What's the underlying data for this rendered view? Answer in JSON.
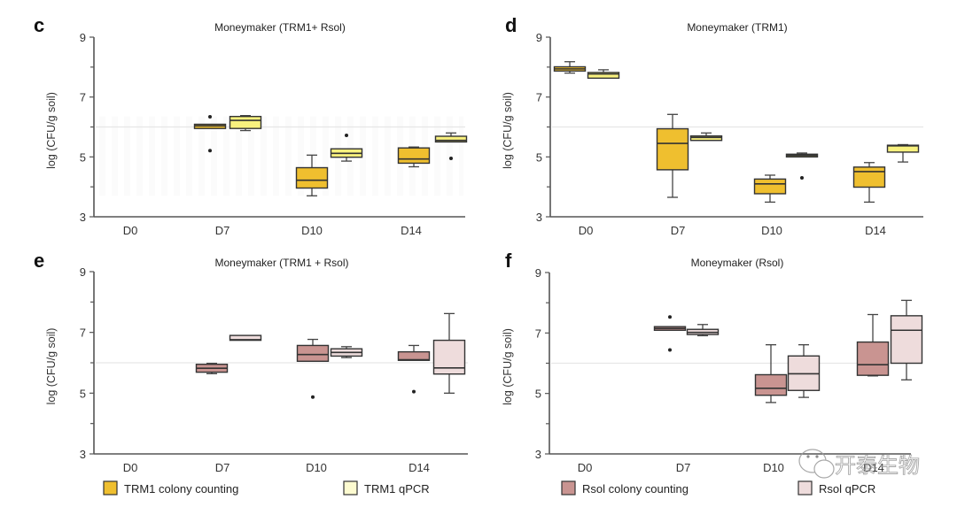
{
  "colors": {
    "trm1_colony": "#EFBF2F",
    "trm1_qpcr": "#F8F17E",
    "trm1_legend_qpcr": "#FDFBD0",
    "rsol_colony": "#C99491",
    "rsol_qpcr": "#EEDCDC",
    "reference_line": "#E6E6E6"
  },
  "legends": {
    "left": [
      {
        "label": "TRM1 colony counting",
        "color_key": "trm1_colony"
      },
      {
        "label": "TRM1 qPCR",
        "color_key": "trm1_legend_qpcr"
      }
    ],
    "right": [
      {
        "label": "Rsol colony counting",
        "color_key": "rsol_colony"
      },
      {
        "label": "Rsol qPCR",
        "color_key": "rsol_qpcr"
      }
    ]
  },
  "watermark": {
    "text": "开泰生物",
    "icon": "wechat-icon"
  },
  "chart_data": [
    {
      "panel": "c",
      "type": "box",
      "title": "Moneymaker (TRM1+ Rsol)",
      "xlabel": "",
      "ylabel": "log (CFU/g soil)",
      "ylim": [
        3,
        9
      ],
      "yticks": [
        3,
        5,
        7,
        9
      ],
      "yminor_ticks": [
        4,
        6,
        8
      ],
      "reference_line": 6,
      "categories": [
        "D0",
        "D7",
        "D10",
        "D14"
      ],
      "series": [
        {
          "name": "TRM1 colony counting",
          "color_key": "trm1_colony",
          "boxes": [
            null,
            {
              "whislo": 5.95,
              "q1": 5.95,
              "med": 6.04,
              "q3": 6.09,
              "whishi": 6.09,
              "fliers": [
                6.34,
                5.21
              ]
            },
            {
              "whislo": 3.7,
              "q1": 3.96,
              "med": 4.22,
              "q3": 4.64,
              "whishi": 5.06,
              "fliers": []
            },
            {
              "whislo": 4.67,
              "q1": 4.79,
              "med": 4.93,
              "q3": 5.3,
              "whishi": 5.33,
              "fliers": []
            }
          ]
        },
        {
          "name": "TRM1 qPCR",
          "color_key": "trm1_qpcr",
          "boxes": [
            null,
            {
              "whislo": 5.88,
              "q1": 5.95,
              "med": 6.22,
              "q3": 6.35,
              "whishi": 6.38,
              "fliers": []
            },
            {
              "whislo": 4.86,
              "q1": 4.99,
              "med": 5.12,
              "q3": 5.27,
              "whishi": 5.27,
              "fliers": [
                5.72
              ]
            },
            {
              "whislo": 5.5,
              "q1": 5.5,
              "med": 5.55,
              "q3": 5.69,
              "whishi": 5.8,
              "fliers": [
                4.95
              ]
            }
          ]
        }
      ]
    },
    {
      "panel": "d",
      "type": "box",
      "title": "Moneymaker (TRM1)",
      "xlabel": "",
      "ylabel": "log (CFU/g soil)",
      "ylim": [
        3,
        9
      ],
      "yticks": [
        3,
        5,
        7,
        9
      ],
      "yminor_ticks": [
        4,
        6,
        8
      ],
      "reference_line": 6,
      "categories": [
        "D0",
        "D7",
        "D10",
        "D14"
      ],
      "series": [
        {
          "name": "TRM1 colony counting",
          "color_key": "trm1_colony",
          "boxes": [
            {
              "whislo": 7.8,
              "q1": 7.87,
              "med": 7.94,
              "q3": 8.01,
              "whishi": 8.18,
              "fliers": []
            },
            {
              "whislo": 3.65,
              "q1": 4.57,
              "med": 5.45,
              "q3": 5.94,
              "whishi": 6.42,
              "fliers": []
            },
            {
              "whislo": 3.49,
              "q1": 3.77,
              "med": 4.1,
              "q3": 4.26,
              "whishi": 4.39,
              "fliers": []
            },
            {
              "whislo": 3.49,
              "q1": 3.99,
              "med": 4.51,
              "q3": 4.66,
              "whishi": 4.81,
              "fliers": []
            }
          ]
        },
        {
          "name": "TRM1 qPCR",
          "color_key": "trm1_qpcr",
          "boxes": [
            {
              "whislo": 7.63,
              "q1": 7.63,
              "med": 7.77,
              "q3": 7.82,
              "whishi": 7.91,
              "fliers": []
            },
            {
              "whislo": 5.55,
              "q1": 5.55,
              "med": 5.65,
              "q3": 5.7,
              "whishi": 5.8,
              "fliers": []
            },
            {
              "whislo": 5.0,
              "q1": 5.0,
              "med": 5.05,
              "q3": 5.09,
              "whishi": 5.13,
              "fliers": [
                4.3
              ]
            },
            {
              "whislo": 4.83,
              "q1": 5.16,
              "med": 5.37,
              "q3": 5.39,
              "whishi": 5.41,
              "fliers": []
            }
          ]
        }
      ]
    },
    {
      "panel": "e",
      "type": "box",
      "title": "Moneymaker (TRM1 + Rsol)",
      "xlabel": "",
      "ylabel": "log (CFU/g soil)",
      "ylim": [
        3,
        9
      ],
      "yticks": [
        3,
        5,
        7,
        9
      ],
      "yminor_ticks": [
        4,
        6,
        8
      ],
      "reference_line": 6,
      "categories": [
        "D0",
        "D7",
        "D10",
        "D14"
      ],
      "series": [
        {
          "name": "Rsol colony counting",
          "color_key": "rsol_colony",
          "boxes": [
            null,
            {
              "whislo": 5.64,
              "q1": 5.69,
              "med": 5.82,
              "q3": 5.95,
              "whishi": 5.98,
              "fliers": []
            },
            {
              "whislo": 6.05,
              "q1": 6.05,
              "med": 6.27,
              "q3": 6.57,
              "whishi": 6.77,
              "fliers": [
                4.87
              ]
            },
            {
              "whislo": 6.08,
              "q1": 6.08,
              "med": 6.1,
              "q3": 6.36,
              "whishi": 6.57,
              "fliers": [
                5.05
              ]
            }
          ]
        },
        {
          "name": "Rsol qPCR",
          "color_key": "rsol_qpcr",
          "boxes": [
            null,
            {
              "whislo": 6.74,
              "q1": 6.74,
              "med": 6.76,
              "q3": 6.9,
              "whishi": 6.9,
              "fliers": []
            },
            {
              "whislo": 6.17,
              "q1": 6.22,
              "med": 6.34,
              "q3": 6.46,
              "whishi": 6.53,
              "fliers": []
            },
            {
              "whislo": 5.0,
              "q1": 5.63,
              "med": 5.83,
              "q3": 6.74,
              "whishi": 7.62,
              "fliers": []
            }
          ]
        }
      ]
    },
    {
      "panel": "f",
      "type": "box",
      "title": "Moneymaker (Rsol)",
      "xlabel": "",
      "ylabel": "log (CFU/g soil)",
      "ylim": [
        3,
        9
      ],
      "yticks": [
        3,
        5,
        7,
        9
      ],
      "yminor_ticks": [
        4,
        6,
        8
      ],
      "reference_line": 6,
      "categories": [
        "D0",
        "D7",
        "D10",
        "D14"
      ],
      "series": [
        {
          "name": "Rsol colony counting",
          "color_key": "rsol_colony",
          "boxes": [
            null,
            {
              "whislo": 7.09,
              "q1": 7.09,
              "med": 7.15,
              "q3": 7.21,
              "whishi": 7.21,
              "fliers": [
                7.53,
                6.44
              ]
            },
            {
              "whislo": 4.7,
              "q1": 4.94,
              "med": 5.17,
              "q3": 5.62,
              "whishi": 6.61,
              "fliers": []
            },
            {
              "whislo": 5.58,
              "q1": 5.6,
              "med": 5.95,
              "q3": 6.7,
              "whishi": 7.61,
              "fliers": []
            }
          ]
        },
        {
          "name": "Rsol qPCR",
          "color_key": "rsol_qpcr",
          "boxes": [
            null,
            {
              "whislo": 6.91,
              "q1": 6.95,
              "med": 7.02,
              "q3": 7.12,
              "whishi": 7.28,
              "fliers": []
            },
            {
              "whislo": 4.87,
              "q1": 5.1,
              "med": 5.65,
              "q3": 6.24,
              "whishi": 6.61,
              "fliers": []
            },
            {
              "whislo": 5.45,
              "q1": 6.0,
              "med": 7.09,
              "q3": 7.57,
              "whishi": 8.08,
              "fliers": []
            }
          ]
        }
      ]
    }
  ]
}
